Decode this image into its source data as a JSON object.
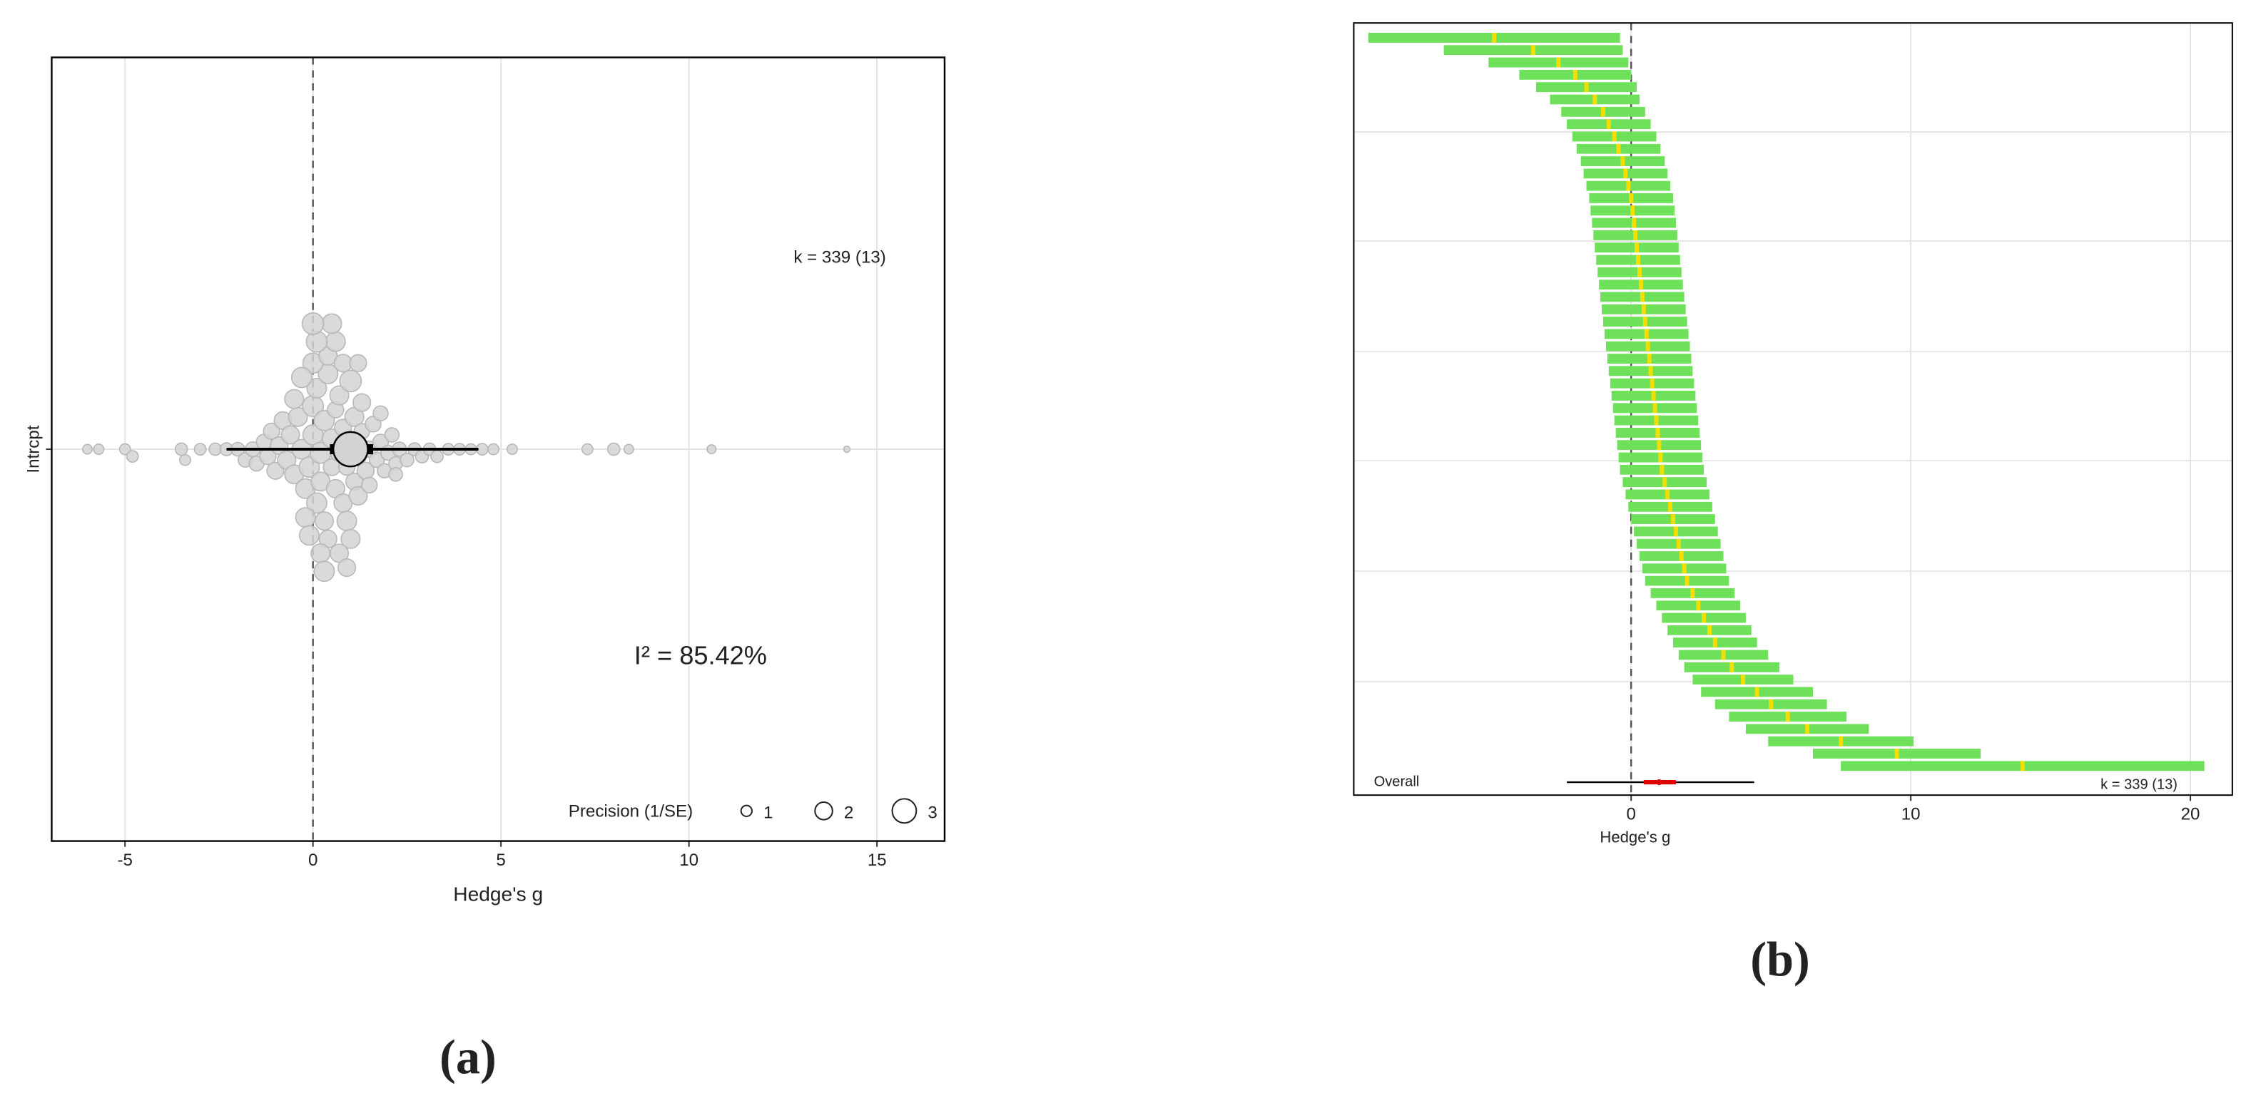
{
  "chart_data": [
    {
      "type": "orchard",
      "label": "(a)",
      "x_label": "Hedge's g",
      "categories": [
        "Intrcpt"
      ],
      "xlim": [
        -6.95,
        16.8
      ],
      "xticks": [
        -5,
        0,
        5,
        10,
        15
      ],
      "grid": true,
      "ref_line": 0,
      "points": {
        "x": [
          -6.0,
          -5.7,
          -5.0,
          -4.8,
          -3.5,
          -3.4,
          -3.0,
          -2.6,
          -2.3,
          -2.0,
          -1.8,
          -1.6,
          -1.5,
          -1.3,
          -1.2,
          -1.1,
          -1.0,
          -0.9,
          -0.8,
          -0.7,
          -0.6,
          -0.5,
          -0.4,
          -0.3,
          -0.2,
          -0.1,
          0.0,
          0.0,
          0.1,
          0.1,
          0.2,
          0.2,
          0.3,
          0.3,
          0.4,
          0.4,
          0.5,
          0.5,
          0.6,
          0.6,
          0.7,
          0.7,
          0.8,
          0.8,
          0.9,
          0.9,
          1.0,
          1.0,
          1.1,
          1.1,
          1.2,
          1.2,
          1.3,
          1.3,
          1.4,
          1.5,
          1.6,
          1.7,
          1.8,
          1.9,
          2.0,
          2.1,
          2.2,
          2.3,
          2.5,
          2.7,
          2.9,
          3.1,
          3.3,
          3.6,
          3.9,
          4.2,
          4.5,
          4.8,
          5.3,
          7.3,
          8.0,
          8.4,
          10.6,
          14.2,
          -0.5,
          -0.2,
          0.0,
          0.2,
          0.4,
          0.6,
          0.8,
          1.0,
          1.2,
          0.1,
          0.3,
          0.5,
          0.7,
          0.9,
          -0.3,
          -0.1,
          1.5,
          1.8,
          2.2,
          0.0
        ],
        "precision": [
          0.8,
          0.9,
          1.0,
          1.1,
          1.2,
          1.0,
          1.1,
          1.2,
          1.3,
          1.4,
          1.5,
          1.6,
          1.6,
          1.7,
          1.8,
          1.8,
          1.9,
          2.0,
          2.0,
          2.1,
          2.1,
          2.2,
          2.2,
          2.3,
          2.3,
          2.4,
          2.4,
          2.5,
          2.4,
          2.3,
          2.5,
          2.2,
          2.4,
          2.1,
          2.3,
          2.0,
          2.2,
          1.9,
          2.1,
          1.8,
          2.0,
          2.2,
          1.9,
          2.1,
          1.8,
          2.3,
          2.0,
          2.6,
          1.9,
          2.2,
          1.8,
          2.1,
          1.7,
          2.0,
          1.9,
          1.8,
          1.7,
          1.6,
          1.7,
          1.5,
          1.6,
          1.5,
          1.4,
          1.5,
          1.4,
          1.3,
          1.3,
          1.2,
          1.2,
          1.1,
          1.1,
          1.0,
          1.1,
          1.0,
          0.9,
          1.0,
          1.2,
          0.8,
          0.7,
          0.3,
          2.2,
          2.3,
          2.4,
          2.2,
          2.1,
          2.3,
          2.0,
          2.2,
          1.9,
          2.5,
          2.4,
          2.3,
          2.1,
          2.0,
          2.4,
          2.3,
          1.7,
          1.6,
          1.4,
          2.6
        ]
      },
      "estimate": 1.0,
      "ci": [
        0.45,
        1.6
      ],
      "pi": [
        -2.3,
        4.4
      ],
      "k_label": "k = 339 (13)",
      "i2_label": "I² = 85.42%",
      "legend_title": "Precision (1/SE)",
      "legend_values": [
        1,
        2,
        3
      ]
    },
    {
      "type": "caterpillar",
      "label": "(b)",
      "x_label": "Hedge's g",
      "xlim": [
        -9.92,
        21.5
      ],
      "xticks": [
        0,
        10,
        20
      ],
      "grid": true,
      "ref_line": 0,
      "color": "#6ee05a",
      "point_color": "#f2de00",
      "values": [
        -4.9,
        -3.5,
        -2.6,
        -2.0,
        -1.6,
        -1.3,
        -1.0,
        -0.8,
        -0.6,
        -0.45,
        -0.3,
        -0.2,
        -0.1,
        0.0,
        0.05,
        0.1,
        0.15,
        0.2,
        0.25,
        0.3,
        0.35,
        0.4,
        0.45,
        0.5,
        0.55,
        0.6,
        0.65,
        0.7,
        0.75,
        0.8,
        0.85,
        0.9,
        0.95,
        1.0,
        1.05,
        1.1,
        1.2,
        1.3,
        1.4,
        1.5,
        1.6,
        1.7,
        1.8,
        1.9,
        2.0,
        2.2,
        2.4,
        2.6,
        2.8,
        3.0,
        3.3,
        3.6,
        4.0,
        4.5,
        5.0,
        5.6,
        6.3,
        7.5,
        9.5,
        14.0
      ],
      "ci_lower": [
        -9.4,
        -6.7,
        -5.1,
        -4.0,
        -3.4,
        -2.9,
        -2.5,
        -2.3,
        -2.1,
        -1.95,
        -1.8,
        -1.7,
        -1.6,
        -1.5,
        -1.45,
        -1.4,
        -1.35,
        -1.3,
        -1.25,
        -1.2,
        -1.15,
        -1.1,
        -1.05,
        -1.0,
        -0.95,
        -0.9,
        -0.85,
        -0.8,
        -0.75,
        -0.7,
        -0.65,
        -0.6,
        -0.55,
        -0.5,
        -0.45,
        -0.4,
        -0.3,
        -0.2,
        -0.1,
        0.0,
        0.1,
        0.2,
        0.3,
        0.4,
        0.5,
        0.7,
        0.9,
        1.1,
        1.3,
        1.5,
        1.7,
        1.9,
        2.2,
        2.5,
        3.0,
        3.5,
        4.1,
        4.9,
        6.5,
        7.5
      ],
      "ci_upper": [
        -0.4,
        -0.3,
        -0.1,
        0.0,
        0.2,
        0.3,
        0.5,
        0.7,
        0.9,
        1.05,
        1.2,
        1.3,
        1.4,
        1.5,
        1.55,
        1.6,
        1.65,
        1.7,
        1.75,
        1.8,
        1.85,
        1.9,
        1.95,
        2.0,
        2.05,
        2.1,
        2.15,
        2.2,
        2.25,
        2.3,
        2.35,
        2.4,
        2.45,
        2.5,
        2.55,
        2.6,
        2.7,
        2.8,
        2.9,
        3.0,
        3.1,
        3.2,
        3.3,
        3.4,
        3.5,
        3.7,
        3.9,
        4.1,
        4.3,
        4.5,
        4.9,
        5.3,
        5.8,
        6.5,
        7.0,
        7.7,
        8.5,
        10.1,
        12.5,
        20.5
      ],
      "overall_label": "Overall",
      "overall_estimate": 1.0,
      "overall_ci": [
        0.45,
        1.6
      ],
      "overall_pi": [
        -2.3,
        4.4
      ],
      "k_label": "k = 339 (13)"
    }
  ]
}
